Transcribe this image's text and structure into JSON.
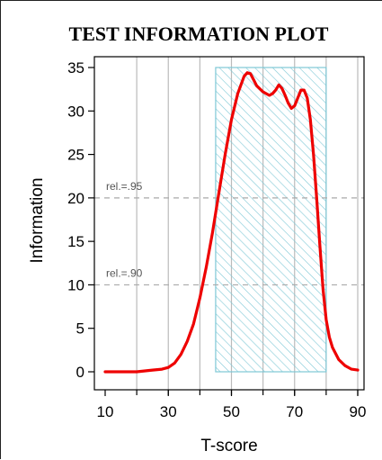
{
  "chart_data": {
    "type": "line",
    "title": "TEST INFORMATION PLOT",
    "xlabel": "T-score",
    "ylabel": "Information",
    "xlim": [
      10,
      90
    ],
    "ylim": [
      0,
      35
    ],
    "x_ticks": [
      10,
      30,
      50,
      70,
      90
    ],
    "y_ticks": [
      0,
      5,
      10,
      15,
      20,
      25,
      30,
      35
    ],
    "vertical_gridlines": [
      20,
      30,
      40,
      50,
      60,
      70,
      80,
      90
    ],
    "grid": true,
    "colors": {
      "line": "#ee0000",
      "band": "#7ec8d6",
      "refline": "#aaaaaa",
      "grid": "#bbbbbb"
    },
    "reference_lines": [
      {
        "label": "rel.=.95",
        "y": 20
      },
      {
        "label": "rel.=.90",
        "y": 10
      }
    ],
    "shaded_region": {
      "x": [
        45,
        80
      ],
      "y": [
        0,
        35
      ],
      "pattern": "diagonal-hatch"
    },
    "series": [
      {
        "x": [
          10,
          15,
          20,
          25,
          28,
          30,
          32,
          34,
          36,
          38,
          40,
          42,
          44,
          46,
          48,
          50,
          52,
          54,
          55,
          56,
          57,
          58,
          60,
          62,
          63,
          64,
          65,
          66,
          67,
          68,
          69,
          70,
          71,
          72,
          73,
          74,
          75,
          76,
          77,
          78,
          79,
          80,
          81,
          82,
          84,
          86,
          88,
          90
        ],
        "y": [
          0,
          0,
          0,
          0.2,
          0.3,
          0.5,
          1.0,
          2.0,
          3.5,
          5.5,
          8.5,
          12.0,
          16.0,
          20.5,
          25.0,
          29.0,
          32.0,
          34.0,
          34.4,
          34.3,
          33.6,
          32.9,
          32.2,
          31.8,
          32.0,
          32.4,
          33.0,
          32.6,
          31.8,
          30.9,
          30.3,
          30.6,
          31.5,
          32.4,
          32.4,
          31.5,
          29.0,
          25.0,
          20.0,
          14.5,
          9.5,
          6.0,
          4.0,
          2.8,
          1.4,
          0.7,
          0.3,
          0.2
        ]
      }
    ]
  }
}
